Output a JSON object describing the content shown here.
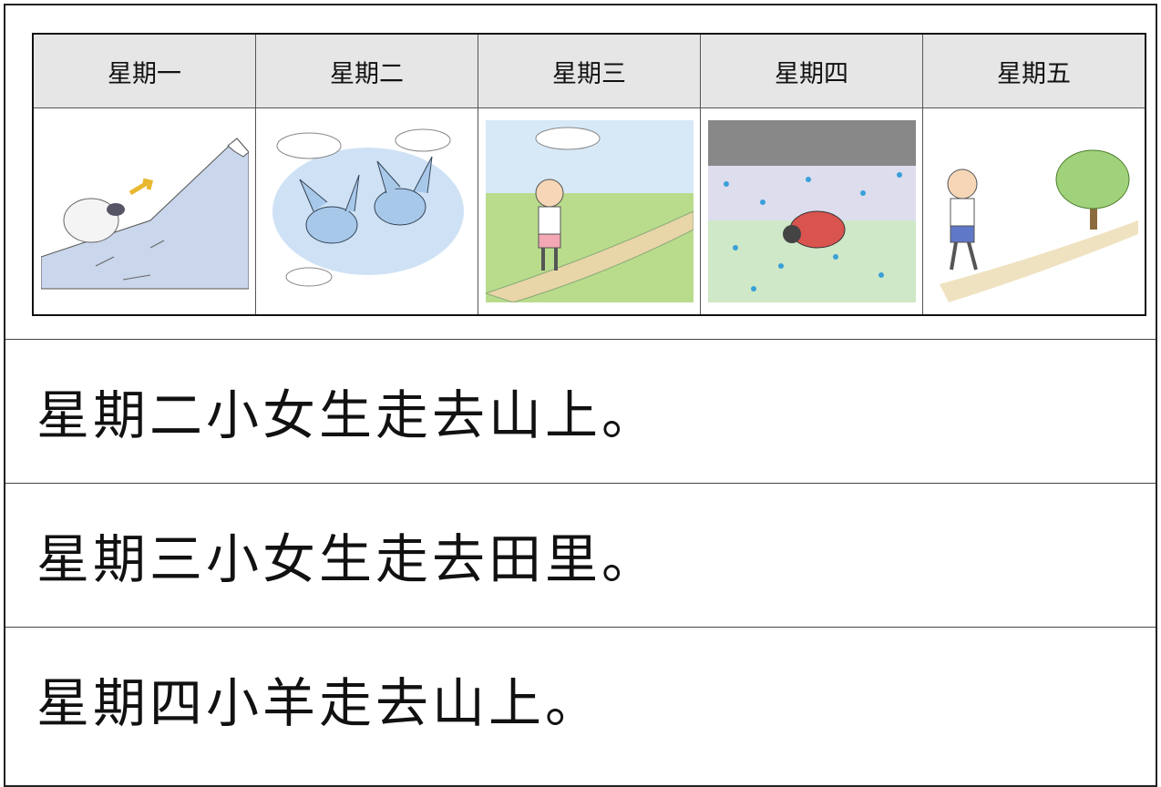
{
  "table": {
    "header": [
      "星期一",
      "星期二",
      "星期三",
      "星期四",
      "星期五"
    ]
  },
  "sentences": [
    "星期二小女生走去山上。",
    "星期三小女生走去田里。",
    "星期四小羊走去山上。"
  ]
}
